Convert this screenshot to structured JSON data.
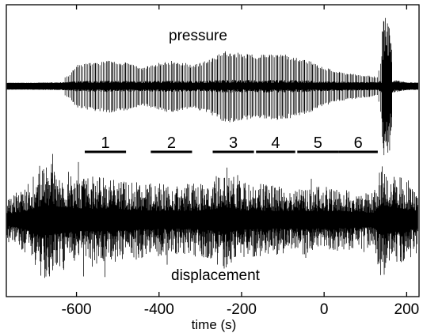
{
  "chart_data": {
    "type": "line",
    "title": "",
    "xlabel": "time (s)",
    "ylabel": "",
    "xlim": [
      -770,
      230
    ],
    "xticks": [
      -600,
      -400,
      -200,
      0,
      200
    ],
    "xtick_labels": [
      "-600",
      "-400",
      "-200",
      "0",
      "200"
    ],
    "grid": false,
    "series": [
      {
        "name": "pressure",
        "description_points": {
          "t": [
            -770,
            -720,
            -660,
            -620,
            -600,
            -560,
            -520,
            -480,
            -440,
            -400,
            -360,
            -320,
            -280,
            -240,
            -200,
            -160,
            -120,
            -80,
            -40,
            0,
            40,
            80,
            130,
            145,
            160,
            200,
            230
          ],
          "amplitude": [
            0.05,
            0.05,
            0.12,
            0.22,
            0.45,
            0.5,
            0.55,
            0.5,
            0.4,
            0.5,
            0.55,
            0.45,
            0.55,
            0.75,
            0.7,
            0.65,
            0.7,
            0.65,
            0.55,
            0.4,
            0.3,
            0.25,
            0.2,
            1.0,
            0.9,
            0.15,
            0.1
          ]
        }
      },
      {
        "name": "displacement",
        "description_points": {
          "t": [
            -770,
            -720,
            -680,
            -600,
            -520,
            -440,
            -360,
            -280,
            -240,
            -200,
            -120,
            -40,
            40,
            120,
            140,
            160,
            200,
            230
          ],
          "amplitude": [
            0.35,
            0.55,
            0.95,
            0.7,
            0.7,
            0.6,
            0.55,
            0.6,
            0.8,
            0.6,
            0.55,
            0.55,
            0.5,
            0.45,
            0.95,
            0.8,
            0.65,
            0.55
          ]
        }
      }
    ],
    "segments": [
      {
        "label": "1",
        "t_start": -580,
        "t_end": -480
      },
      {
        "label": "2",
        "t_start": -420,
        "t_end": -320
      },
      {
        "label": "3",
        "t_start": -270,
        "t_end": -170
      },
      {
        "label": "4",
        "t_start": -165,
        "t_end": -70
      },
      {
        "label": "5",
        "t_start": -65,
        "t_end": 35
      },
      {
        "label": "6",
        "t_start": 35,
        "t_end": 130
      }
    ],
    "annotations": [
      "pressure",
      "displacement"
    ]
  }
}
